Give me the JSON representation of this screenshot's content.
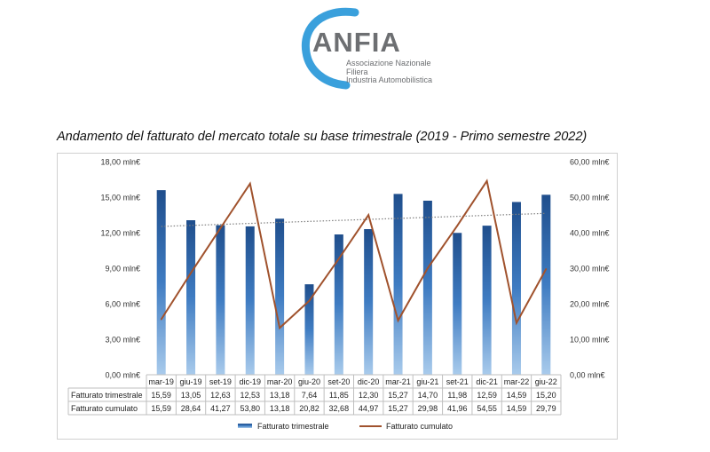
{
  "logo": {
    "brand": "ANFIA",
    "subtitle_lines": [
      "Associazione Nazionale",
      "Filiera",
      "Industria Automobilistica"
    ]
  },
  "page_title": "Andamento del fatturato del mercato totale su base trimestrale (2019 - Primo semestre 2022)",
  "chart_data": {
    "type": "bar",
    "categories": [
      "mar-19",
      "giu-19",
      "set-19",
      "dic-19",
      "mar-20",
      "giu-20",
      "set-20",
      "dic-20",
      "mar-21",
      "giu-21",
      "set-21",
      "dic-21",
      "mar-22",
      "giu-22"
    ],
    "series": [
      {
        "name": "Fatturato trimestrale",
        "type": "bar",
        "axis": "left",
        "color": "#2e6aad",
        "values": [
          15.59,
          13.05,
          12.63,
          12.53,
          13.18,
          7.64,
          11.85,
          12.3,
          15.27,
          14.7,
          11.98,
          12.59,
          14.59,
          15.2
        ],
        "labels": [
          "15,59",
          "13,05",
          "12,63",
          "12,53",
          "13,18",
          "7,64",
          "11,85",
          "12,30",
          "15,27",
          "14,70",
          "11,98",
          "12,59",
          "14,59",
          "15,20"
        ]
      },
      {
        "name": "Fatturato  cumulato",
        "type": "line",
        "axis": "right",
        "color": "#a0522d",
        "values": [
          15.59,
          28.64,
          41.27,
          53.8,
          13.18,
          20.82,
          32.68,
          44.97,
          15.27,
          29.98,
          41.96,
          54.55,
          14.59,
          29.79
        ],
        "labels": [
          "15,59",
          "28,64",
          "41,27",
          "53,80",
          "13,18",
          "20,82",
          "32,68",
          "44,97",
          "15,27",
          "29,98",
          "41,96",
          "54,55",
          "14,59",
          "29,79"
        ]
      }
    ],
    "trendline": {
      "series": "Fatturato trimestrale",
      "style": "dotted",
      "color": "#7f7f7f"
    },
    "y_left": {
      "lim": [
        0,
        18
      ],
      "ticks": [
        "0,00 mln€",
        "3,00 mln€",
        "6,00 mln€",
        "9,00 mln€",
        "12,00 mln€",
        "15,00 mln€",
        "18,00 mln€"
      ]
    },
    "y_right": {
      "lim": [
        0,
        60
      ],
      "ticks": [
        "0,00 mln€",
        "10,00 mln€",
        "20,00 mln€",
        "30,00 mln€",
        "40,00 mln€",
        "50,00 mln€",
        "60,00 mln€"
      ]
    },
    "grid": false,
    "legend_position": "bottom",
    "data_table": true
  }
}
